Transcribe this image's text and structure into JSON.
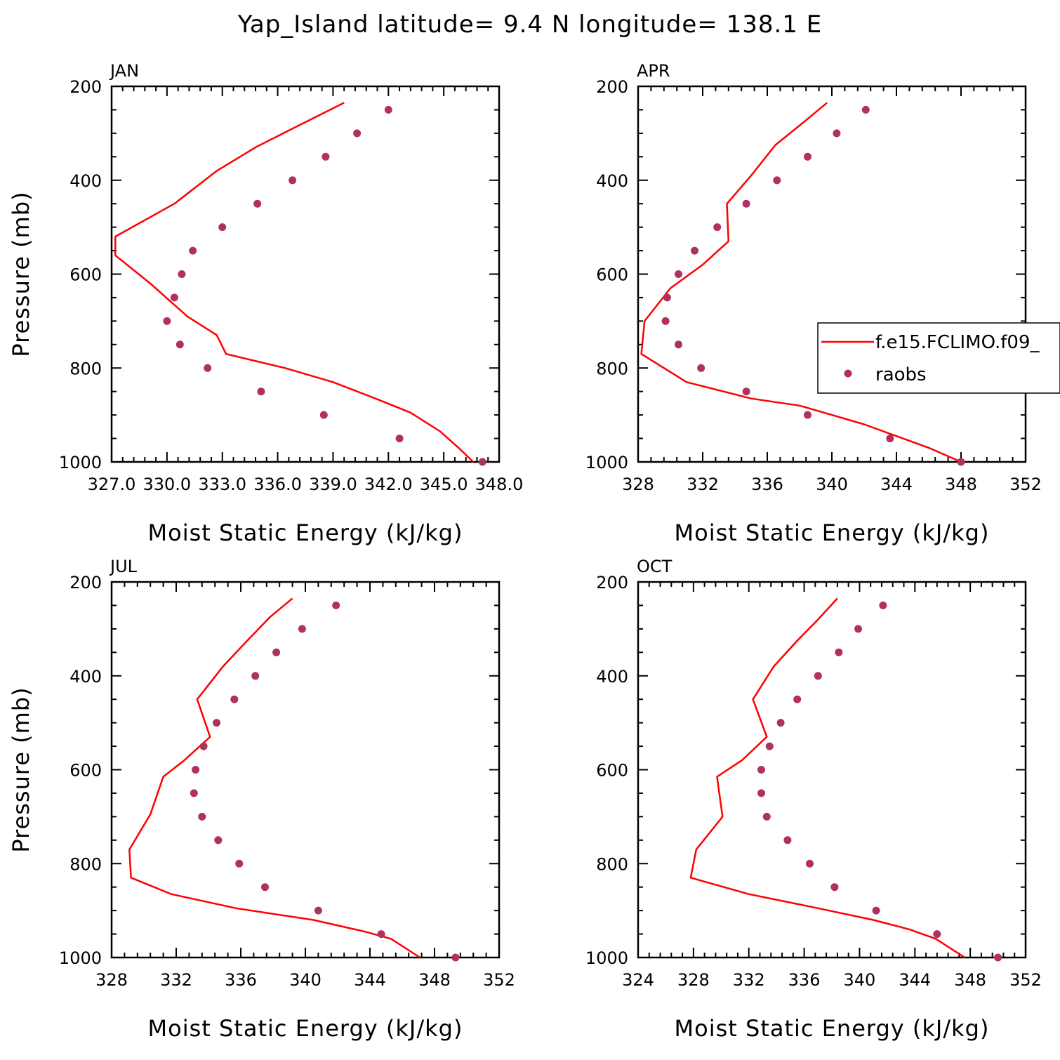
{
  "title": "Yap_Island  latitude= 9.4 N longitude= 138.1 E",
  "colors": {
    "model": "#ff0000",
    "obs": "#b03060",
    "axis": "#000000"
  },
  "legend": {
    "model": "f.e15.FCLIMO.f09_",
    "obs": "raobs"
  },
  "chart_data": [
    {
      "type": "line",
      "panel": "JAN",
      "xlabel": "Moist Static Energy (kJ/kg)",
      "ylabel": "Pressure (mb)",
      "xlim": [
        327.0,
        348.0
      ],
      "ylim": [
        1000,
        200
      ],
      "xticks": [
        "327.0",
        "330.0",
        "333.0",
        "336.0",
        "339.0",
        "342.0",
        "345.0",
        "348.0"
      ],
      "yticks": [
        "200",
        "400",
        "600",
        "800",
        "1000"
      ],
      "series": [
        {
          "name": "f.e15.FCLIMO.f09_",
          "kind": "line",
          "x": [
            346.6,
            345.8,
            344.8,
            343.2,
            341.3,
            339.0,
            336.4,
            333.2,
            332.7,
            331.1,
            329.1,
            327.2,
            327.2,
            330.4,
            332.7,
            334.8,
            336.8,
            339.6
          ],
          "y": [
            1000,
            970,
            935,
            895,
            865,
            830,
            800,
            770,
            730,
            690,
            620,
            560,
            520,
            450,
            380,
            330,
            290,
            235
          ]
        },
        {
          "name": "raobs",
          "kind": "points",
          "x": [
            347.1,
            342.6,
            338.5,
            335.1,
            332.2,
            330.7,
            330.0,
            330.4,
            330.8,
            331.4,
            333.0,
            334.9,
            336.8,
            338.6,
            340.3,
            342.0
          ],
          "y": [
            1000,
            950,
            900,
            850,
            800,
            750,
            700,
            650,
            600,
            550,
            500,
            450,
            400,
            350,
            300,
            250
          ]
        }
      ]
    },
    {
      "type": "line",
      "panel": "APR",
      "xlabel": "Moist Static Energy (kJ/kg)",
      "ylabel": "",
      "xlim": [
        328,
        352
      ],
      "ylim": [
        1000,
        200
      ],
      "xticks": [
        "328",
        "332",
        "336",
        "340",
        "344",
        "348",
        "352"
      ],
      "yticks": [
        "200",
        "400",
        "600",
        "800",
        "1000"
      ],
      "series": [
        {
          "name": "f.e15.FCLIMO.f09_",
          "kind": "line",
          "x": [
            348.0,
            346.0,
            344.0,
            342.0,
            340.0,
            338.0,
            335.0,
            331.0,
            328.2,
            328.4,
            330.0,
            332.0,
            333.6,
            333.5,
            335.0,
            336.5,
            338.3,
            339.7
          ],
          "y": [
            1000,
            970,
            945,
            920,
            900,
            880,
            865,
            830,
            770,
            700,
            630,
            580,
            530,
            450,
            390,
            325,
            275,
            235
          ]
        },
        {
          "name": "raobs",
          "kind": "points",
          "x": [
            348.0,
            343.6,
            338.5,
            334.7,
            331.9,
            330.5,
            329.7,
            329.8,
            330.5,
            331.5,
            332.9,
            334.7,
            336.6,
            338.5,
            340.3,
            342.1
          ],
          "y": [
            1000,
            950,
            900,
            850,
            800,
            750,
            700,
            650,
            600,
            550,
            500,
            450,
            400,
            350,
            300,
            250
          ]
        }
      ]
    },
    {
      "type": "line",
      "panel": "JUL",
      "xlabel": "Moist Static Energy (kJ/kg)",
      "ylabel": "Pressure (mb)",
      "xlim": [
        328,
        352
      ],
      "ylim": [
        1000,
        200
      ],
      "xticks": [
        "328",
        "332",
        "336",
        "340",
        "344",
        "348",
        "352"
      ],
      "yticks": [
        "200",
        "400",
        "600",
        "800",
        "1000"
      ],
      "series": [
        {
          "name": "f.e15.FCLIMO.f09_",
          "kind": "line",
          "x": [
            347.1,
            345.3,
            343.7,
            340.5,
            335.7,
            331.7,
            329.2,
            329.1,
            330.4,
            331.2,
            332.5,
            334.1,
            333.3,
            334.9,
            336.4,
            337.8,
            339.2
          ],
          "y": [
            1000,
            960,
            945,
            920,
            895,
            865,
            830,
            770,
            695,
            615,
            580,
            530,
            450,
            380,
            325,
            275,
            235
          ]
        },
        {
          "name": "raobs",
          "kind": "points",
          "x": [
            349.3,
            344.7,
            340.8,
            337.5,
            335.9,
            334.6,
            333.6,
            333.1,
            333.2,
            333.7,
            334.5,
            335.6,
            336.9,
            338.2,
            339.8,
            341.9
          ],
          "y": [
            1000,
            950,
            900,
            850,
            800,
            750,
            700,
            650,
            600,
            550,
            500,
            450,
            400,
            350,
            300,
            250
          ]
        }
      ]
    },
    {
      "type": "line",
      "panel": "OCT",
      "xlabel": "Moist Static Energy (kJ/kg)",
      "ylabel": "",
      "xlim": [
        324,
        352
      ],
      "ylim": [
        1000,
        200
      ],
      "xticks": [
        "324",
        "328",
        "332",
        "336",
        "340",
        "344",
        "348",
        "352"
      ],
      "yticks": [
        "200",
        "400",
        "600",
        "800",
        "1000"
      ],
      "series": [
        {
          "name": "f.e15.FCLIMO.f09_",
          "kind": "line",
          "x": [
            347.6,
            345.5,
            343.6,
            341.0,
            337.0,
            332.0,
            327.8,
            328.2,
            330.1,
            329.7,
            331.5,
            333.3,
            332.3,
            333.8,
            335.5,
            337.0,
            338.4
          ],
          "y": [
            1000,
            960,
            940,
            920,
            895,
            865,
            830,
            770,
            700,
            615,
            580,
            530,
            450,
            380,
            325,
            280,
            235
          ]
        },
        {
          "name": "raobs",
          "kind": "points",
          "x": [
            350.0,
            345.6,
            341.2,
            338.2,
            336.4,
            334.8,
            333.3,
            332.9,
            332.9,
            333.5,
            334.3,
            335.5,
            337.0,
            338.5,
            339.9,
            341.7
          ],
          "y": [
            1000,
            950,
            900,
            850,
            800,
            750,
            700,
            650,
            600,
            550,
            500,
            450,
            400,
            350,
            300,
            250
          ]
        }
      ]
    }
  ]
}
